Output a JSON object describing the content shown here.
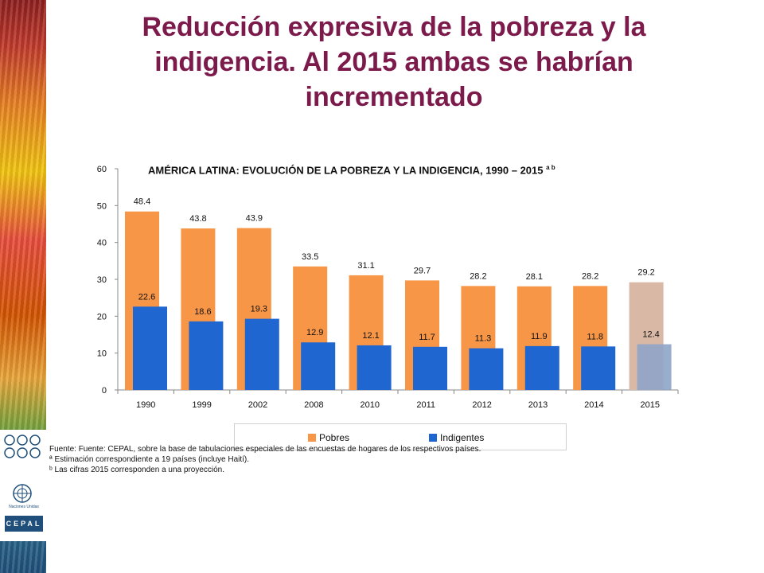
{
  "page": {
    "title": "Reducción expresiva de la pobreza y la indigencia.  Al 2015 ambas se habrían incrementado"
  },
  "chart_data": {
    "type": "bar",
    "title": "AMÉRICA LATINA: EVOLUCIÓN DE LA POBREZA Y LA INDIGENCIA, 1990 – 2015",
    "title_sup": "a b",
    "categories": [
      "1990",
      "1999",
      "2002",
      "2008",
      "2010",
      "2011",
      "2012",
      "2013",
      "2014",
      "2015"
    ],
    "series": [
      {
        "name": "Pobres",
        "color": "#f79646",
        "values": [
          48.4,
          43.8,
          43.9,
          33.5,
          31.1,
          29.7,
          28.2,
          28.1,
          28.2,
          29.2
        ]
      },
      {
        "name": "Indigentes",
        "color": "#1f66d1",
        "values": [
          22.6,
          18.6,
          19.3,
          12.9,
          12.1,
          11.7,
          11.3,
          11.9,
          11.8,
          12.4
        ]
      }
    ],
    "projection_category": "2015",
    "projection_colors": {
      "Pobres": "#d9b9a6",
      "Indigentes": "#8ea4c8"
    },
    "ylim": [
      0,
      60
    ],
    "yticks": [
      0,
      10,
      20,
      30,
      40,
      50,
      60
    ],
    "legend_position": "bottom",
    "grid": false
  },
  "notes": [
    "Fuente: Fuente: CEPAL, sobre la base de tabulaciones especiales de las encuestas de hogares de los respectivos países.",
    "ª Estimación correspondiente a 19 países  (incluye Haití).",
    "ᵇ Las cifras 2015 corresponden a una proyección."
  ],
  "logos": {
    "un_text": "Naciones Unidas",
    "cepal": "CEPAL"
  },
  "icons": [
    "rings-icon",
    "un-emblem-icon"
  ]
}
